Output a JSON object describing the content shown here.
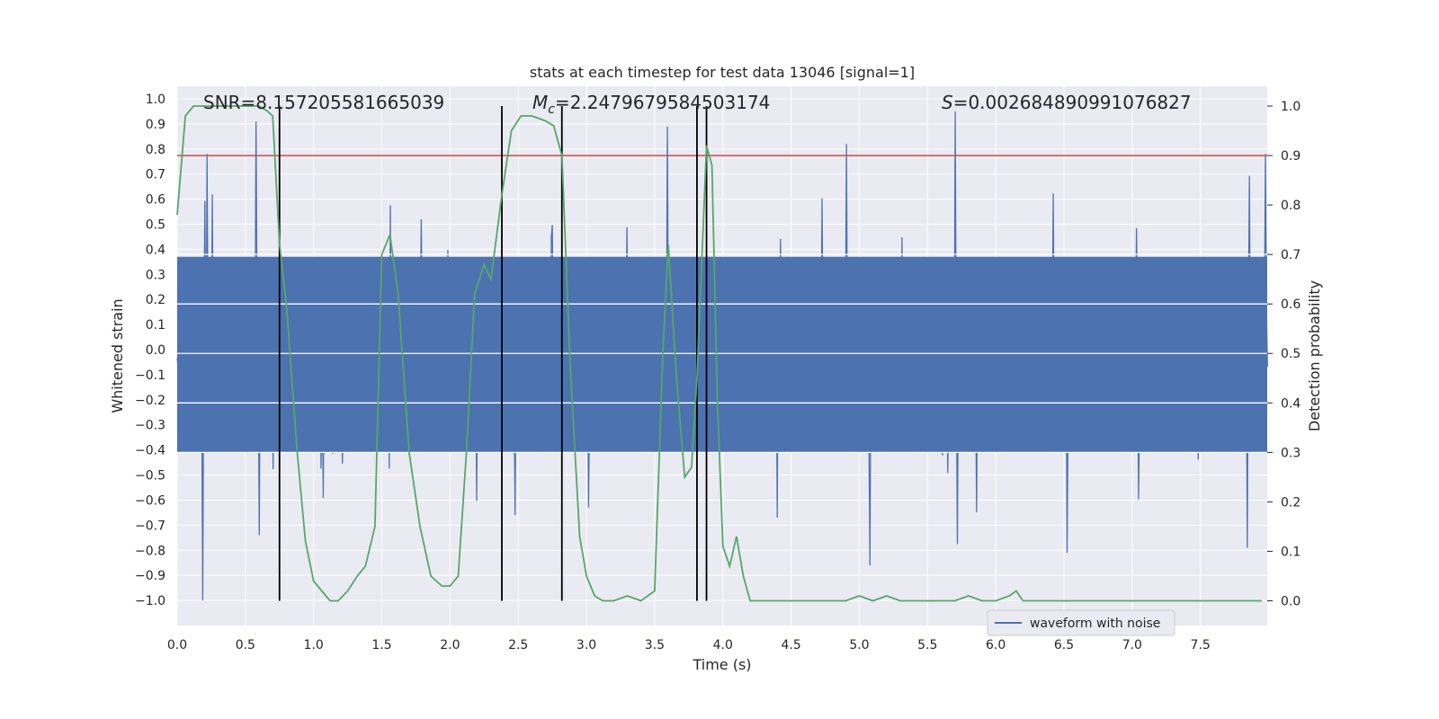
{
  "chart_data": {
    "type": "line",
    "title": "stats at each timestep for test data 13046 [signal=1]",
    "xlabel": "Time (s)",
    "ylabel_left": "Whitened strain",
    "ylabel_right": "Detection probability",
    "xlim": [
      0,
      7.99
    ],
    "ylim_left": [
      -1.1,
      1.05
    ],
    "ylim_right": [
      -0.05,
      1.04
    ],
    "x_ticks": [
      0.0,
      0.5,
      1.0,
      1.5,
      2.0,
      2.5,
      3.0,
      3.5,
      4.0,
      4.5,
      5.0,
      5.5,
      6.0,
      6.5,
      7.0,
      7.5
    ],
    "x_tick_labels": [
      "0.0",
      "0.5",
      "1.0",
      "1.5",
      "2.0",
      "2.5",
      "3.0",
      "3.5",
      "4.0",
      "4.5",
      "5.0",
      "5.5",
      "6.0",
      "6.5",
      "7.0",
      "7.5"
    ],
    "y_left_ticks": [
      1.0,
      0.9,
      0.8,
      0.7,
      0.6,
      0.5,
      0.4,
      0.3,
      0.2,
      0.1,
      0.0,
      -0.1,
      -0.2,
      -0.3,
      -0.4,
      -0.5,
      -0.6,
      -0.7,
      -0.8,
      -0.9,
      -1.0
    ],
    "y_left_tick_labels": [
      "1.0",
      "0.9",
      "0.8",
      "0.7",
      "0.6",
      "0.5",
      "0.4",
      "0.3",
      "0.2",
      "0.1",
      "0.0",
      "−0.1",
      "−0.2",
      "−0.3",
      "−0.4",
      "−0.5",
      "−0.6",
      "−0.7",
      "−0.8",
      "−0.9",
      "−1.0"
    ],
    "y_right_ticks": [
      1.0,
      0.9,
      0.8,
      0.7,
      0.6,
      0.5,
      0.4,
      0.3,
      0.2,
      0.1,
      0.0
    ],
    "y_right_tick_labels": [
      "1.0",
      "0.9",
      "0.8",
      "0.7",
      "0.6",
      "0.5",
      "0.4",
      "0.3",
      "0.2",
      "0.1",
      "0.0"
    ],
    "annotations": {
      "snr": "SNR=8.157205581665039",
      "mc_symbol": "M",
      "mc_sub": "c",
      "mc_value": "=2.2479679584503174",
      "s_symbol": "S",
      "s_value": "=0.002684890991076827"
    },
    "threshold": {
      "value": 0.9,
      "axis": "right",
      "color": "#c44e52"
    },
    "vertical_markers_s": [
      0.75,
      2.38,
      2.82,
      3.81,
      3.88
    ],
    "waveform": {
      "name": "waveform with noise",
      "color": "#4c72b0",
      "sample_rate_hz_approx": 128,
      "band_upper": 0.37,
      "band_lower": -0.41,
      "notable_peaks": [
        {
          "t": 0.19,
          "v": -1.0
        },
        {
          "t": 0.22,
          "v": 0.78
        },
        {
          "t": 0.58,
          "v": 0.91
        },
        {
          "t": 0.6,
          "v": -0.74
        },
        {
          "t": 3.59,
          "v": 0.89
        },
        {
          "t": 4.91,
          "v": 0.82
        },
        {
          "t": 5.08,
          "v": -0.86
        },
        {
          "t": 5.7,
          "v": 0.95
        },
        {
          "t": 6.52,
          "v": -0.81
        },
        {
          "t": 7.84,
          "v": -0.79
        },
        {
          "t": 7.98,
          "v": 0.78
        }
      ]
    },
    "probability": {
      "color": "#55a868",
      "x": [
        0.0,
        0.06,
        0.12,
        0.2,
        0.3,
        0.4,
        0.5,
        0.6,
        0.66,
        0.7,
        0.75,
        0.8,
        0.88,
        0.94,
        1.0,
        1.06,
        1.12,
        1.18,
        1.25,
        1.32,
        1.38,
        1.45,
        1.5,
        1.56,
        1.62,
        1.7,
        1.78,
        1.86,
        1.94,
        2.0,
        2.06,
        2.12,
        2.18,
        2.25,
        2.3,
        2.38,
        2.45,
        2.52,
        2.6,
        2.7,
        2.76,
        2.82,
        2.88,
        2.95,
        3.0,
        3.06,
        3.12,
        3.2,
        3.3,
        3.4,
        3.5,
        3.56,
        3.6,
        3.66,
        3.72,
        3.77,
        3.81,
        3.88,
        3.92,
        3.96,
        4.0,
        4.05,
        4.1,
        4.15,
        4.2,
        4.3,
        4.4,
        4.5,
        4.6,
        4.7,
        4.8,
        4.9,
        5.0,
        5.1,
        5.2,
        5.3,
        5.4,
        5.5,
        5.6,
        5.7,
        5.8,
        5.9,
        6.0,
        6.1,
        6.15,
        6.2,
        6.3,
        6.4,
        6.5,
        6.6,
        6.7,
        6.8,
        6.9,
        7.0,
        7.1,
        7.2,
        7.3,
        7.4,
        7.5,
        7.6,
        7.7,
        7.8,
        7.95
      ],
      "y": [
        0.78,
        0.98,
        1.0,
        1.0,
        1.0,
        1.0,
        1.0,
        1.0,
        0.99,
        0.98,
        0.72,
        0.6,
        0.3,
        0.12,
        0.04,
        0.02,
        0.0,
        0.0,
        0.02,
        0.05,
        0.07,
        0.15,
        0.7,
        0.74,
        0.62,
        0.3,
        0.15,
        0.05,
        0.03,
        0.03,
        0.05,
        0.3,
        0.62,
        0.68,
        0.65,
        0.82,
        0.95,
        0.98,
        0.98,
        0.97,
        0.96,
        0.9,
        0.48,
        0.13,
        0.05,
        0.01,
        0.0,
        0.0,
        0.01,
        0.0,
        0.02,
        0.5,
        0.72,
        0.45,
        0.25,
        0.27,
        0.45,
        0.92,
        0.88,
        0.4,
        0.11,
        0.07,
        0.13,
        0.05,
        0.0,
        0.0,
        0.0,
        0.0,
        0.0,
        0.0,
        0.0,
        0.0,
        0.01,
        0.0,
        0.01,
        0.0,
        0.0,
        0.0,
        0.0,
        0.0,
        0.01,
        0.0,
        0.0,
        0.01,
        0.02,
        0.0,
        0.0,
        0.0,
        0.0,
        0.0,
        0.0,
        0.0,
        0.0,
        0.0,
        0.0,
        0.0,
        0.0,
        0.0,
        0.0,
        0.0,
        0.0,
        0.0,
        0.0
      ]
    },
    "legend": {
      "entries": [
        "waveform with noise"
      ],
      "position": "lower-right"
    },
    "colors": {
      "background": "#eaeaf2",
      "grid": "#ffffff",
      "marker": "#000000"
    }
  }
}
